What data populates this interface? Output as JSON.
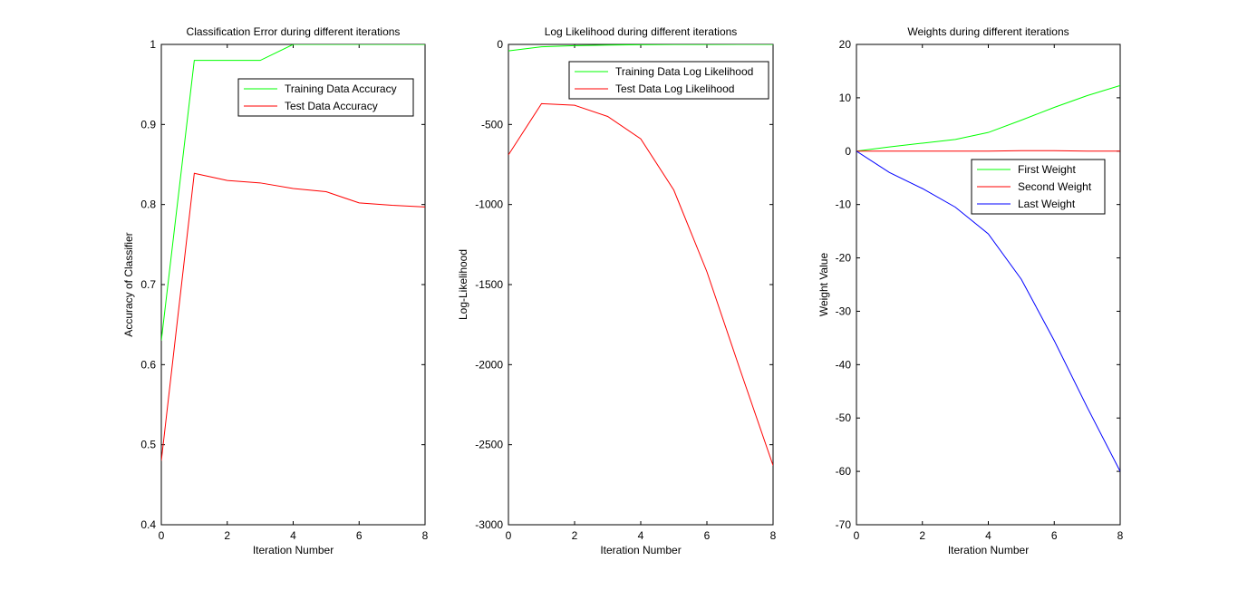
{
  "chart_data": [
    {
      "type": "line",
      "title": "Classification Error during different iterations",
      "xlabel": "Iteration Number",
      "ylabel": "Accuracy of Classifier",
      "xlim": [
        0,
        8
      ],
      "ylim": [
        0.4,
        1
      ],
      "xticks": [
        0,
        2,
        4,
        6,
        8
      ],
      "xtick_labels": [
        "0",
        "2",
        "4",
        "6",
        "8"
      ],
      "yticks": [
        0.4,
        0.5,
        0.6,
        0.7,
        0.8,
        0.9,
        1
      ],
      "ytick_labels": [
        "0.4",
        "0.5",
        "0.6",
        "0.7",
        "0.8",
        "0.9",
        "1"
      ],
      "grid": false,
      "legend_position": "top-right",
      "series": [
        {
          "name": "Training Data Accuracy",
          "color": "#00ff00",
          "x": [
            0,
            1,
            2,
            3,
            4,
            5,
            6,
            7,
            8
          ],
          "values": [
            0.63,
            0.98,
            0.98,
            0.98,
            1.0,
            1.0,
            1.0,
            1.0,
            1.0
          ]
        },
        {
          "name": "Test Data Accuracy",
          "color": "#ff0000",
          "x": [
            0,
            1,
            2,
            3,
            4,
            5,
            6,
            7,
            8
          ],
          "values": [
            0.48,
            0.839,
            0.83,
            0.827,
            0.82,
            0.816,
            0.802,
            0.799,
            0.797
          ]
        }
      ]
    },
    {
      "type": "line",
      "title": "Log Likelihood during different iterations",
      "xlabel": "Iteration Number",
      "ylabel": "Log-Likelihood",
      "xlim": [
        0,
        8
      ],
      "ylim": [
        -3000,
        0
      ],
      "xticks": [
        0,
        2,
        4,
        6,
        8
      ],
      "xtick_labels": [
        "0",
        "2",
        "4",
        "6",
        "8"
      ],
      "yticks": [
        -3000,
        -2500,
        -2000,
        -1500,
        -1000,
        -500,
        0
      ],
      "ytick_labels": [
        "-3000",
        "-2500",
        "-2000",
        "-1500",
        "-1000",
        "-500",
        "0"
      ],
      "grid": false,
      "legend_position": "top-right",
      "series": [
        {
          "name": "Training Data Log Likelihood",
          "color": "#00ff00",
          "x": [
            0,
            1,
            2,
            3,
            4,
            5,
            6,
            7,
            8
          ],
          "values": [
            -40,
            -15,
            -8,
            -4,
            -2,
            -1,
            -1,
            0,
            0
          ]
        },
        {
          "name": "Test Data Log Likelihood",
          "color": "#ff0000",
          "x": [
            0,
            1,
            2,
            3,
            4,
            5,
            6,
            7,
            8
          ],
          "values": [
            -690,
            -370,
            -380,
            -450,
            -590,
            -910,
            -1420,
            -2030,
            -2630
          ]
        }
      ]
    },
    {
      "type": "line",
      "title": "Weights during different iterations",
      "xlabel": "Iteration Number",
      "ylabel": "Weight Value",
      "xlim": [
        0,
        8
      ],
      "ylim": [
        -70,
        20
      ],
      "xticks": [
        0,
        2,
        4,
        6,
        8
      ],
      "xtick_labels": [
        "0",
        "2",
        "4",
        "6",
        "8"
      ],
      "yticks": [
        -70,
        -60,
        -50,
        -40,
        -30,
        -20,
        -10,
        0,
        10,
        20
      ],
      "ytick_labels": [
        "-70",
        "-60",
        "-50",
        "-40",
        "-30",
        "-20",
        "-10",
        "0",
        "10",
        "20"
      ],
      "grid": false,
      "legend_position": "middle-right",
      "series": [
        {
          "name": "First Weight",
          "color": "#00ff00",
          "x": [
            0,
            1,
            2,
            3,
            4,
            5,
            6,
            7,
            8
          ],
          "values": [
            0,
            0.8,
            1.5,
            2.2,
            3.5,
            5.8,
            8.2,
            10.4,
            12.3
          ]
        },
        {
          "name": "Second Weight",
          "color": "#ff0000",
          "x": [
            0,
            1,
            2,
            3,
            4,
            5,
            6,
            7,
            8
          ],
          "values": [
            0,
            0,
            0,
            0,
            0,
            0.1,
            0.1,
            0,
            0
          ]
        },
        {
          "name": "Last Weight",
          "color": "#0000ff",
          "x": [
            0,
            1,
            2,
            3,
            4,
            5,
            6,
            7,
            8
          ],
          "values": [
            0,
            -4,
            -7,
            -10.5,
            -15.5,
            -24,
            -35.5,
            -48,
            -60
          ]
        }
      ]
    }
  ]
}
